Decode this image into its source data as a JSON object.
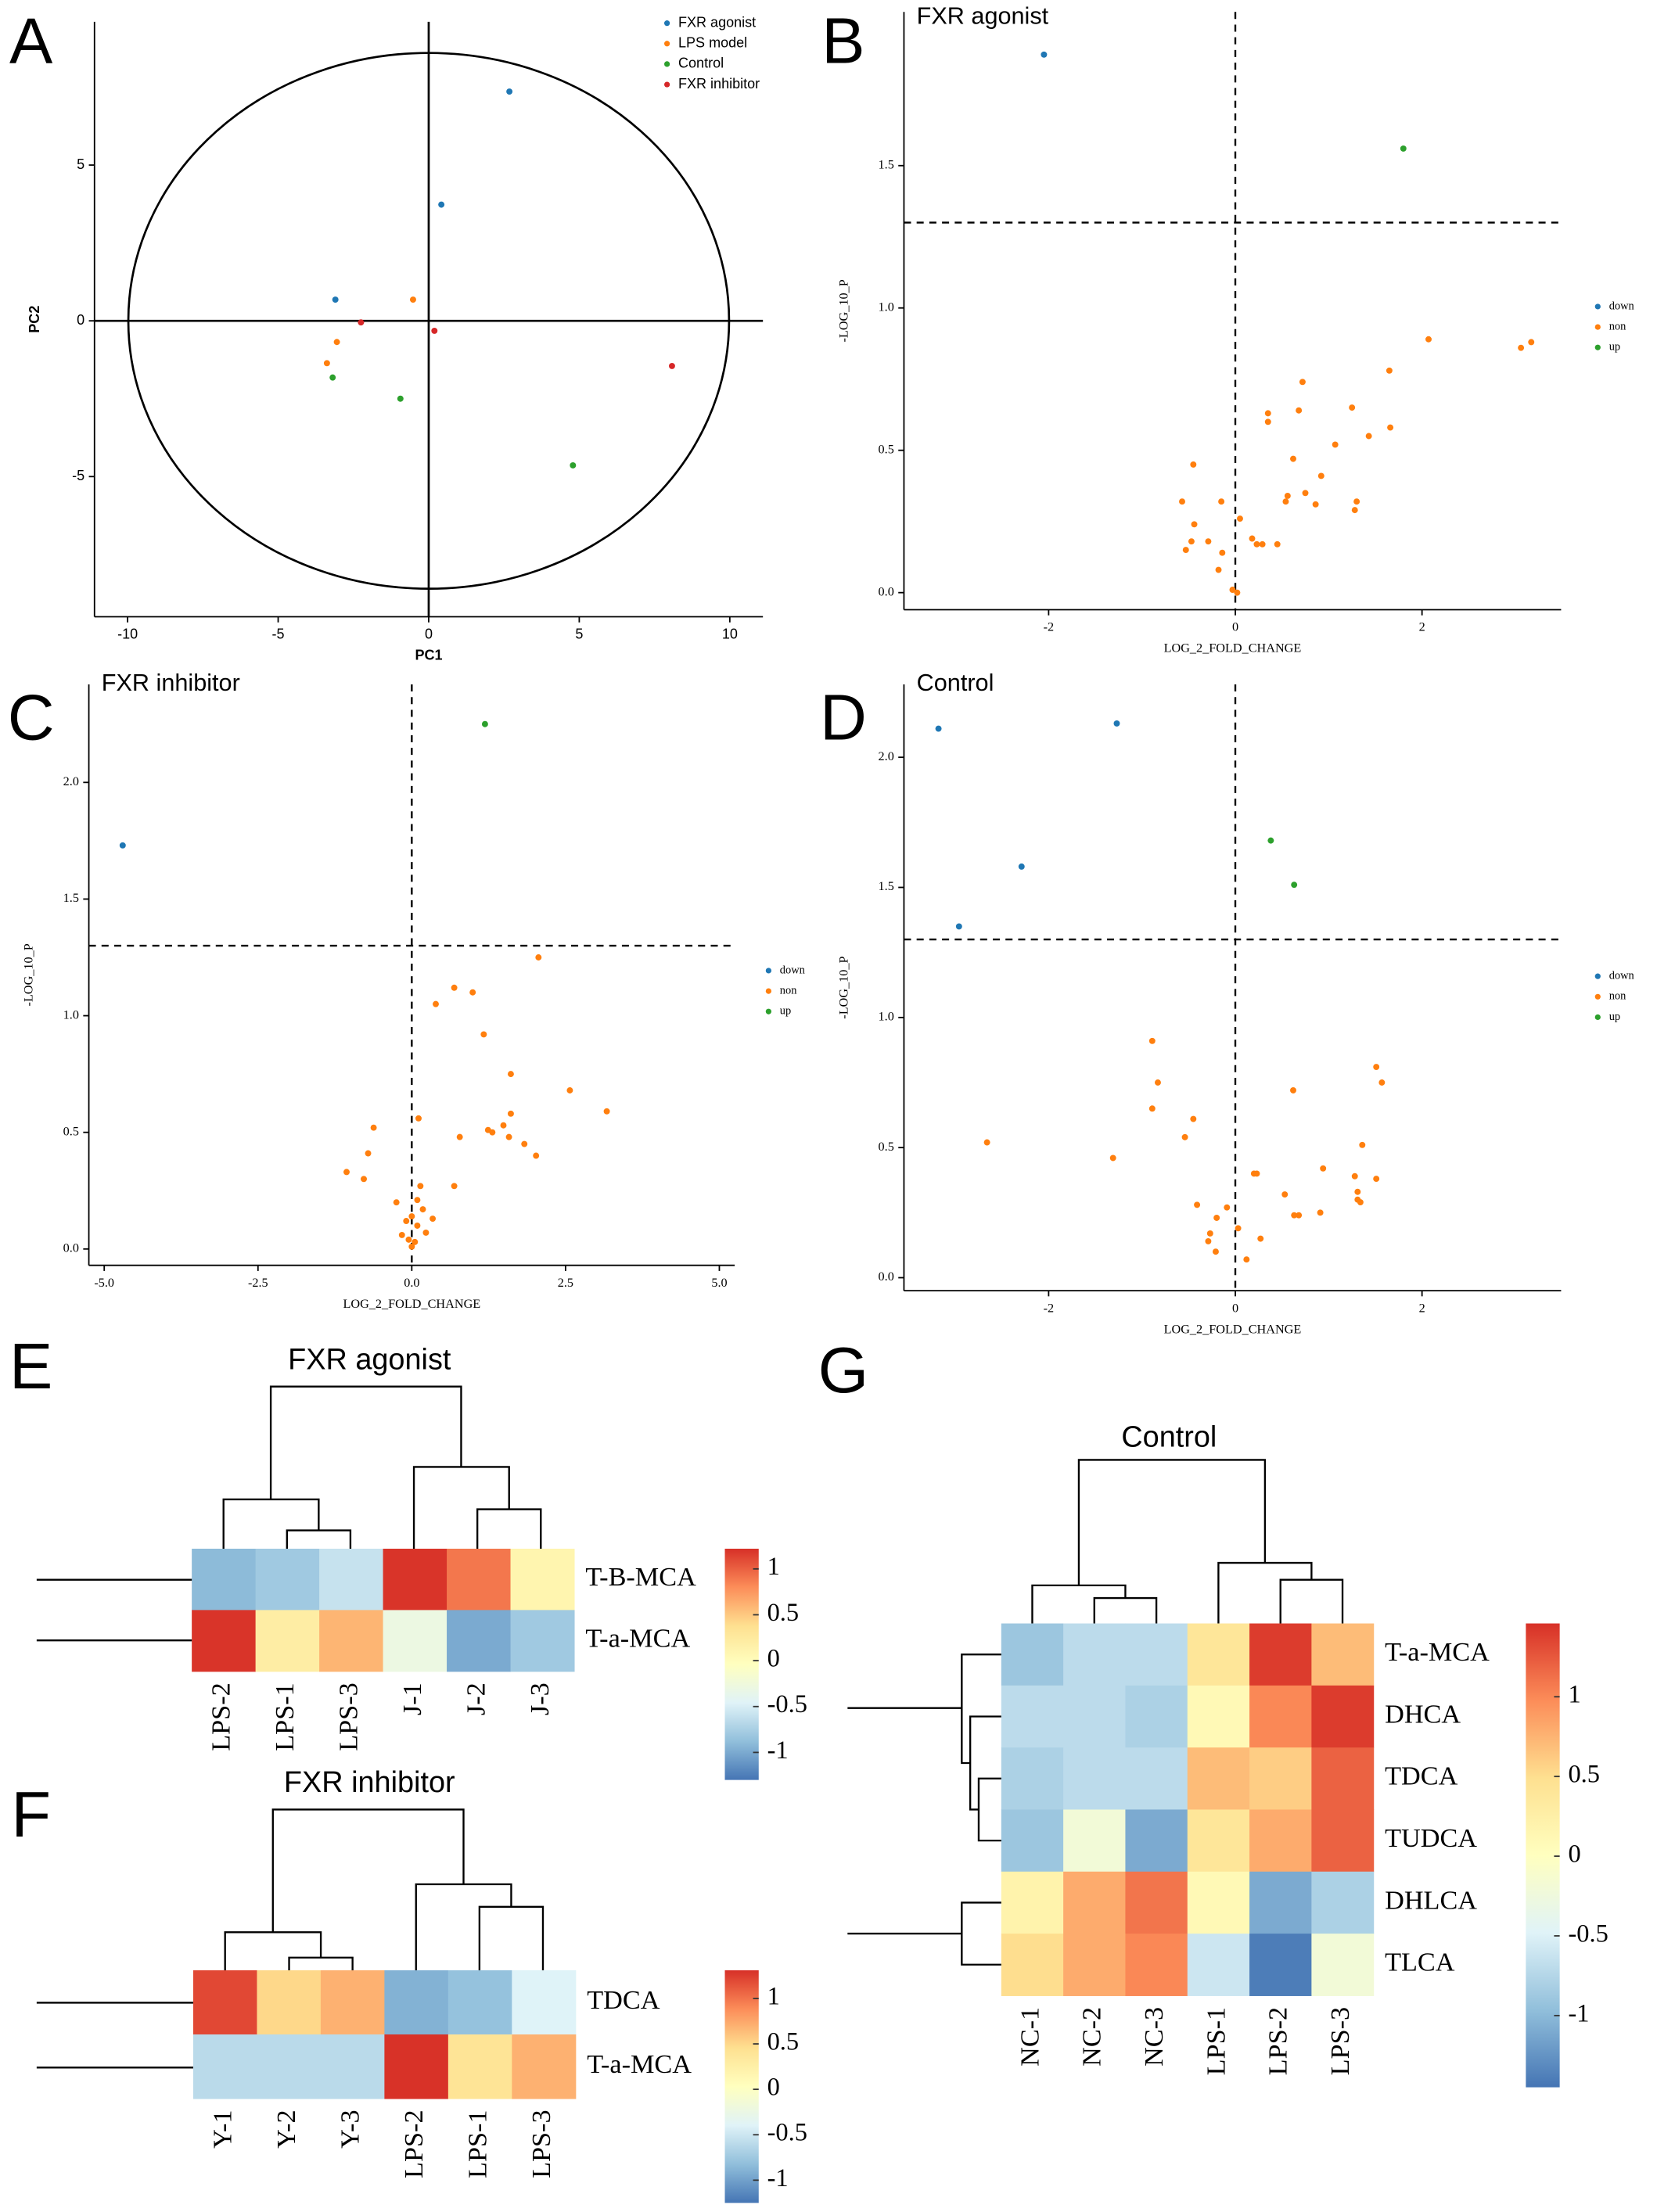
{
  "chart_data": [
    {
      "type": "scatter",
      "panel_label": "A",
      "xlabel": "PC1",
      "ylabel": "PC2",
      "xlim": [
        -11.1,
        11.1
      ],
      "ylim": [
        -9.5,
        9.6
      ],
      "xticks": [
        -10,
        -5,
        0,
        5,
        10
      ],
      "yticks": [
        -5,
        0,
        5
      ],
      "reference_lines": {
        "x": 0,
        "y": 0
      },
      "legend": "top-right",
      "series": [
        {
          "name": "FXR agonist",
          "color": "#1f77b4",
          "x": [
            2.68,
            0.42,
            -3.1
          ],
          "values": [
            7.36,
            3.73,
            0.68
          ]
        },
        {
          "name": "LPS model",
          "color": "#ff7f0e",
          "x": [
            -0.52,
            -3.05,
            -3.38
          ],
          "values": [
            0.68,
            -0.68,
            -1.36
          ]
        },
        {
          "name": "Control",
          "color": "#2ca02c",
          "x": [
            -3.19,
            -0.94,
            4.79
          ],
          "values": [
            -1.82,
            -2.5,
            -4.64
          ]
        },
        {
          "name": "FXR inhibitor",
          "color": "#d62728",
          "x": [
            -2.25,
            0.19,
            8.08
          ],
          "values": [
            -0.05,
            -0.32,
            -1.45
          ]
        }
      ]
    },
    {
      "type": "scatter",
      "panel_label": "B",
      "title": "FXR agonist",
      "xlabel": "LOG_2_FOLD_CHANGE",
      "ylabel": "-LOG_10_P",
      "xlim": [
        -3.55,
        3.49
      ],
      "ylim": [
        -0.06,
        2.04
      ],
      "xticks": [
        -2,
        0,
        2
      ],
      "yticks": [
        {
          "value": 0,
          "label": "0.0"
        },
        {
          "value": 0.5,
          "label": "0.5"
        },
        {
          "value": 1,
          "label": "1.0"
        },
        {
          "value": 1.5,
          "label": "1.5"
        }
      ],
      "reference_lines": {
        "x": 0,
        "y": 1.3
      },
      "legend": "right",
      "series": [
        {
          "name": "down",
          "color": "#1f77b4",
          "x": [
            -2.05
          ],
          "values": [
            1.89
          ]
        },
        {
          "name": "non",
          "color": "#ff7f0e",
          "x": [
            2.07,
            3.06,
            3.17,
            0.72,
            1.65,
            0.35,
            0.35,
            0.68,
            1.25,
            1.43,
            1.66,
            -0.45,
            0.62,
            1.07,
            0.75,
            0.56,
            0.54,
            0.92,
            0.86,
            1.3,
            1.28,
            -0.57,
            -0.15,
            0.05,
            -0.44,
            -0.47,
            -0.29,
            -0.53,
            0.18,
            0.23,
            0.29,
            0.45,
            -0.14,
            -0.18,
            -0.03,
            0.02
          ],
          "values": [
            0.89,
            0.86,
            0.88,
            0.74,
            0.78,
            0.63,
            0.6,
            0.64,
            0.65,
            0.55,
            0.58,
            0.45,
            0.47,
            0.52,
            0.35,
            0.34,
            0.32,
            0.41,
            0.31,
            0.32,
            0.29,
            0.32,
            0.32,
            0.26,
            0.24,
            0.18,
            0.18,
            0.15,
            0.19,
            0.17,
            0.17,
            0.17,
            0.14,
            0.08,
            0.01,
            0.0
          ]
        },
        {
          "name": "up",
          "color": "#2ca02c",
          "x": [
            1.8
          ],
          "values": [
            1.56
          ]
        }
      ]
    },
    {
      "type": "scatter",
      "panel_label": "C",
      "title": "FXR inhibitor",
      "xlabel": "LOG_2_FOLD_CHANGE",
      "ylabel": "-LOG_10_P",
      "xlim": [
        -5.25,
        5.25
      ],
      "ylim": [
        -0.07,
        2.42
      ],
      "xticks": [
        {
          "value": -5,
          "label": "-5.0"
        },
        {
          "value": -2.5,
          "label": "-2.5"
        },
        {
          "value": 0,
          "label": "0.0"
        },
        {
          "value": 2.5,
          "label": "2.5"
        },
        {
          "value": 5,
          "label": "5.0"
        }
      ],
      "yticks": [
        {
          "value": 0,
          "label": "0.0"
        },
        {
          "value": 0.5,
          "label": "0.5"
        },
        {
          "value": 1,
          "label": "1.0"
        },
        {
          "value": 1.5,
          "label": "1.5"
        },
        {
          "value": 2,
          "label": "2.0"
        }
      ],
      "reference_lines": {
        "x": 0,
        "y": 1.3
      },
      "legend": "right",
      "series": [
        {
          "name": "down",
          "color": "#1f77b4",
          "x": [
            -4.7
          ],
          "values": [
            1.73
          ]
        },
        {
          "name": "non",
          "color": "#ff7f0e",
          "x": [
            2.06,
            0.69,
            0.99,
            0.39,
            1.17,
            2.57,
            3.17,
            1.61,
            1.24,
            1.31,
            1.49,
            1.61,
            1.58,
            1.83,
            2.02,
            0.78,
            0.11,
            -0.62,
            -0.71,
            -1.06,
            -0.78,
            0.69,
            0.14,
            0.09,
            -0.25,
            0.18,
            0,
            0.34,
            -0.09,
            0.09,
            0.23,
            -0.16,
            -0.05,
            0.05,
            0
          ],
          "values": [
            1.25,
            1.12,
            1.1,
            1.05,
            0.92,
            0.68,
            0.59,
            0.75,
            0.51,
            0.5,
            0.53,
            0.58,
            0.48,
            0.45,
            0.4,
            0.48,
            0.56,
            0.52,
            0.41,
            0.33,
            0.3,
            0.27,
            0.27,
            0.21,
            0.2,
            0.17,
            0.14,
            0.13,
            0.12,
            0.1,
            0.07,
            0.06,
            0.04,
            0.03,
            0.01
          ]
        },
        {
          "name": "up",
          "color": "#2ca02c",
          "x": [
            1.19
          ],
          "values": [
            2.25
          ]
        }
      ]
    },
    {
      "type": "scatter",
      "panel_label": "D",
      "title": "Control",
      "xlabel": "LOG_2_FOLD_CHANGE",
      "ylabel": "-LOG_10_P",
      "xlim": [
        -3.55,
        3.49
      ],
      "ylim": [
        -0.05,
        2.28
      ],
      "xticks": [
        -2,
        0,
        2
      ],
      "yticks": [
        {
          "value": 0,
          "label": "0.0"
        },
        {
          "value": 0.5,
          "label": "0.5"
        },
        {
          "value": 1,
          "label": "1.0"
        },
        {
          "value": 1.5,
          "label": "1.5"
        },
        {
          "value": 2,
          "label": "2.0"
        }
      ],
      "reference_lines": {
        "x": 0,
        "y": 1.3
      },
      "legend": "right",
      "series": [
        {
          "name": "down",
          "color": "#1f77b4",
          "x": [
            -3.18,
            -1.27,
            -2.29,
            -2.96
          ],
          "values": [
            2.11,
            2.13,
            1.58,
            1.35
          ]
        },
        {
          "name": "non",
          "color": "#ff7f0e",
          "x": [
            -0.89,
            -0.83,
            -2.66,
            -0.89,
            -0.45,
            -0.54,
            -1.31,
            0.62,
            1.51,
            1.57,
            1.36,
            1.51,
            1.28,
            1.31,
            1.31,
            1.34,
            0.94,
            0.2,
            0.23,
            0.53,
            0.68,
            0.63,
            0.91,
            -0.41,
            -0.09,
            -0.2,
            -0.27,
            0.03,
            -0.29,
            -0.21,
            0.27,
            0.12
          ],
          "values": [
            0.91,
            0.75,
            0.52,
            0.65,
            0.61,
            0.54,
            0.46,
            0.72,
            0.81,
            0.75,
            0.51,
            0.38,
            0.39,
            0.33,
            0.3,
            0.29,
            0.42,
            0.4,
            0.4,
            0.32,
            0.24,
            0.24,
            0.25,
            0.28,
            0.27,
            0.23,
            0.17,
            0.19,
            0.14,
            0.1,
            0.15,
            0.07
          ]
        },
        {
          "name": "up",
          "color": "#2ca02c",
          "x": [
            0.38,
            0.63
          ],
          "values": [
            1.68,
            1.51
          ]
        }
      ]
    },
    {
      "type": "heatmap",
      "panel_label": "E",
      "title": "FXR agonist",
      "x": [
        "LPS-2",
        "LPS-1",
        "LPS-3",
        "J-1",
        "J-2",
        "J-3"
      ],
      "y": [
        "T-B-MCA",
        "T-a-MCA"
      ],
      "values": [
        [
          -0.9,
          -0.8,
          -0.6,
          1.2,
          0.9,
          0.1
        ],
        [
          1.2,
          0.2,
          0.6,
          -0.3,
          -1.0,
          -0.8
        ]
      ],
      "zlim": [
        -1.3,
        1.22
      ],
      "zticks": [
        1,
        0.5,
        0,
        -0.5,
        -1
      ],
      "colorscale": [
        "#4575b4",
        "#91bfdb",
        "#e0f3f8",
        "#ffffbf",
        "#fee090",
        "#fc8d59",
        "#d73027"
      ]
    },
    {
      "type": "heatmap",
      "panel_label": "F",
      "title": "FXR inhibitor",
      "x": [
        "Y-1",
        "Y-2",
        "Y-3",
        "LPS-2",
        "LPS-1",
        "LPS-3"
      ],
      "y": [
        "TDCA",
        "T-a-MCA"
      ],
      "values": [
        [
          1.2,
          0.5,
          0.7,
          -0.9,
          -0.8,
          -0.4
        ],
        [
          -0.6,
          -0.6,
          -0.6,
          1.3,
          0.4,
          0.7
        ]
      ],
      "zlim": [
        -1.25,
        1.31
      ],
      "zticks": [
        1,
        0.5,
        0,
        -0.5,
        -1
      ],
      "colorscale": [
        "#4575b4",
        "#91bfdb",
        "#e0f3f8",
        "#ffffbf",
        "#fee090",
        "#fc8d59",
        "#d73027"
      ]
    },
    {
      "type": "heatmap",
      "panel_label": "G",
      "title": "Control",
      "x": [
        "NC-1",
        "NC-2",
        "NC-3",
        "LPS-1",
        "LPS-2",
        "LPS-3"
      ],
      "y": [
        "T-a-MCA",
        "DHCA",
        "TDCA",
        "TUDCA",
        "DHLCA",
        "TLCA"
      ],
      "values": [
        [
          -0.9,
          -0.7,
          -0.7,
          0.4,
          1.4,
          0.7
        ],
        [
          -0.7,
          -0.7,
          -0.8,
          0.1,
          1.0,
          1.4
        ],
        [
          -0.8,
          -0.7,
          -0.7,
          0.7,
          0.6,
          1.2
        ],
        [
          -0.9,
          -0.2,
          -1.1,
          0.4,
          0.8,
          1.2
        ],
        [
          0.2,
          0.8,
          1.1,
          0.1,
          -1.1,
          -0.8
        ],
        [
          0.5,
          0.8,
          1.0,
          -0.6,
          -1.4,
          -0.2
        ]
      ],
      "zlim": [
        -1.45,
        1.46
      ],
      "zticks": [
        1,
        0.5,
        0,
        -0.5,
        -1
      ],
      "colorscale": [
        "#4575b4",
        "#91bfdb",
        "#e0f3f8",
        "#ffffbf",
        "#fee090",
        "#fc8d59",
        "#d73027"
      ]
    }
  ]
}
